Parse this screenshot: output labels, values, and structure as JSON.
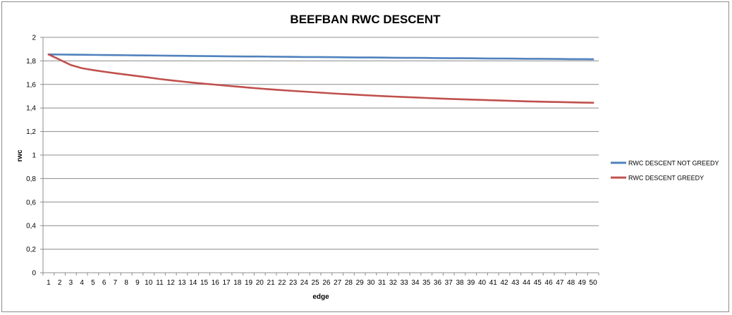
{
  "chart_data": {
    "type": "line",
    "title": "BEEFBAN RWC DESCENT",
    "xlabel": "edge",
    "ylabel": "rwc",
    "ylim": [
      0,
      2
    ],
    "yticks": [
      "0",
      "0,2",
      "0,4",
      "0,6",
      "0,8",
      "1",
      "1,2",
      "1,4",
      "1,6",
      "1,8",
      "2"
    ],
    "ytick_values": [
      0,
      0.2,
      0.4,
      0.6,
      0.8,
      1,
      1.2,
      1.4,
      1.6,
      1.8,
      2
    ],
    "x": [
      1,
      2,
      3,
      4,
      5,
      6,
      7,
      8,
      9,
      10,
      11,
      12,
      13,
      14,
      15,
      16,
      17,
      18,
      19,
      20,
      21,
      22,
      23,
      24,
      25,
      26,
      27,
      28,
      29,
      30,
      31,
      32,
      33,
      34,
      35,
      36,
      37,
      38,
      39,
      40,
      41,
      42,
      43,
      44,
      45,
      46,
      47,
      48,
      49,
      50
    ],
    "grid": true,
    "legend_position": "right",
    "series": [
      {
        "name": "RWC DESCENT NOT GREEDY",
        "color": "#4f81bd",
        "values": [
          1.855,
          1.854,
          1.853,
          1.852,
          1.851,
          1.85,
          1.849,
          1.848,
          1.847,
          1.846,
          1.845,
          1.844,
          1.843,
          1.842,
          1.841,
          1.84,
          1.839,
          1.838,
          1.837,
          1.837,
          1.836,
          1.835,
          1.834,
          1.833,
          1.833,
          1.832,
          1.831,
          1.83,
          1.829,
          1.829,
          1.828,
          1.827,
          1.826,
          1.826,
          1.825,
          1.824,
          1.823,
          1.823,
          1.822,
          1.821,
          1.82,
          1.82,
          1.819,
          1.818,
          1.818,
          1.817,
          1.816,
          1.815,
          1.815,
          1.814
        ]
      },
      {
        "name": "RWC DESCENT GREEDY",
        "color": "#c0504d",
        "values": [
          1.855,
          1.81,
          1.765,
          1.738,
          1.722,
          1.708,
          1.695,
          1.683,
          1.671,
          1.659,
          1.646,
          1.635,
          1.625,
          1.615,
          1.606,
          1.598,
          1.589,
          1.581,
          1.573,
          1.565,
          1.558,
          1.551,
          1.545,
          1.539,
          1.533,
          1.527,
          1.521,
          1.516,
          1.511,
          1.506,
          1.501,
          1.497,
          1.493,
          1.489,
          1.485,
          1.481,
          1.477,
          1.474,
          1.471,
          1.468,
          1.465,
          1.462,
          1.459,
          1.456,
          1.454,
          1.452,
          1.45,
          1.448,
          1.446,
          1.444
        ]
      }
    ]
  }
}
